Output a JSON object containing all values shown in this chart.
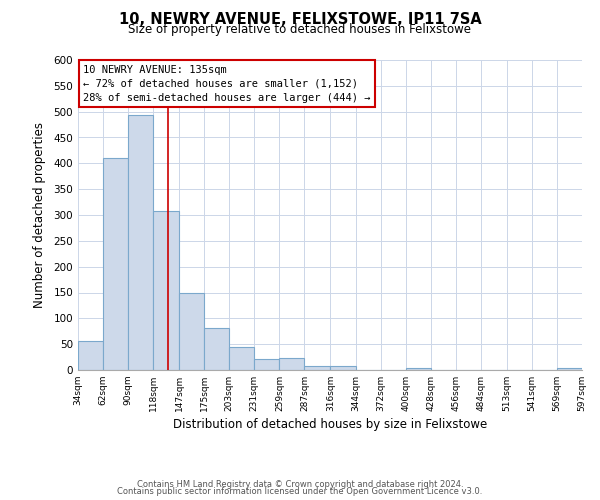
{
  "title": "10, NEWRY AVENUE, FELIXSTOWE, IP11 7SA",
  "subtitle": "Size of property relative to detached houses in Felixstowe",
  "xlabel": "Distribution of detached houses by size in Felixstowe",
  "ylabel": "Number of detached properties",
  "bar_edges": [
    34,
    62,
    90,
    118,
    147,
    175,
    203,
    231,
    259,
    287,
    316,
    344,
    372,
    400,
    428,
    456,
    484,
    513,
    541,
    569,
    597
  ],
  "bar_heights": [
    57,
    410,
    494,
    307,
    150,
    82,
    44,
    22,
    24,
    8,
    8,
    0,
    0,
    3,
    0,
    0,
    0,
    0,
    0,
    4
  ],
  "bar_color": "#cdd9ea",
  "bar_edge_color": "#7ba8cc",
  "annotation_line1": "10 NEWRY AVENUE: 135sqm",
  "annotation_line2": "← 72% of detached houses are smaller (1,152)",
  "annotation_line3": "28% of semi-detached houses are larger (444) →",
  "property_line_x": 135,
  "ylim": [
    0,
    600
  ],
  "yticks": [
    0,
    50,
    100,
    150,
    200,
    250,
    300,
    350,
    400,
    450,
    500,
    550,
    600
  ],
  "tick_labels": [
    "34sqm",
    "62sqm",
    "90sqm",
    "118sqm",
    "147sqm",
    "175sqm",
    "203sqm",
    "231sqm",
    "259sqm",
    "287sqm",
    "316sqm",
    "344sqm",
    "372sqm",
    "400sqm",
    "428sqm",
    "456sqm",
    "484sqm",
    "513sqm",
    "541sqm",
    "569sqm",
    "597sqm"
  ],
  "footer_line1": "Contains HM Land Registry data © Crown copyright and database right 2024.",
  "footer_line2": "Contains public sector information licensed under the Open Government Licence v3.0.",
  "bg_color": "#ffffff",
  "grid_color": "#ccd6e8",
  "annot_box_color": "#cc0000"
}
